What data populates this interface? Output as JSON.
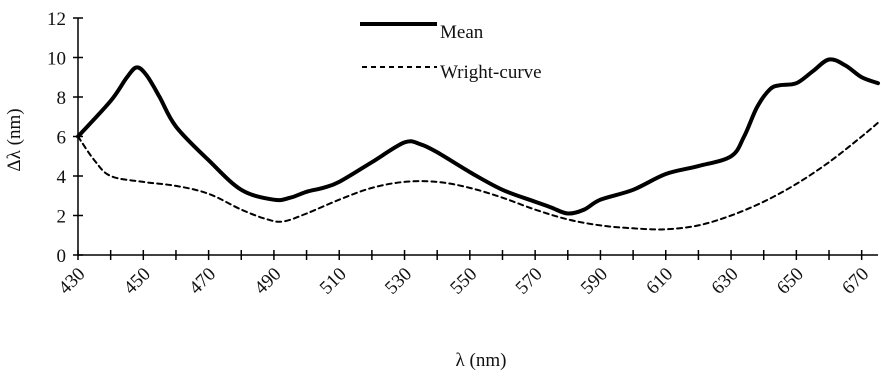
{
  "chart_data": {
    "type": "line",
    "xlabel": "λ (nm)",
    "ylabel": "Δλ (nm)",
    "xlim": [
      430,
      675
    ],
    "ylim": [
      0,
      12
    ],
    "y_ticks": [
      "0",
      "2",
      "4",
      "6",
      "8",
      "10",
      "12"
    ],
    "x_ticks": [
      "430",
      "450",
      "470",
      "490",
      "510",
      "530",
      "550",
      "570",
      "590",
      "610",
      "630",
      "650",
      "670"
    ],
    "legend_position": "top-center",
    "grid": false,
    "series": [
      {
        "name": "Mean",
        "style": "solid",
        "color": "#000000",
        "points": [
          [
            430,
            6.0
          ],
          [
            440,
            7.8
          ],
          [
            445,
            9.0
          ],
          [
            448,
            9.5
          ],
          [
            451,
            9.1
          ],
          [
            455,
            8.0
          ],
          [
            460,
            6.5
          ],
          [
            470,
            4.8
          ],
          [
            480,
            3.3
          ],
          [
            490,
            2.8
          ],
          [
            495,
            2.9
          ],
          [
            500,
            3.2
          ],
          [
            505,
            3.4
          ],
          [
            510,
            3.7
          ],
          [
            520,
            4.7
          ],
          [
            530,
            5.7
          ],
          [
            535,
            5.6
          ],
          [
            540,
            5.2
          ],
          [
            550,
            4.2
          ],
          [
            560,
            3.3
          ],
          [
            570,
            2.7
          ],
          [
            575,
            2.4
          ],
          [
            580,
            2.1
          ],
          [
            585,
            2.3
          ],
          [
            590,
            2.8
          ],
          [
            600,
            3.3
          ],
          [
            610,
            4.1
          ],
          [
            620,
            4.5
          ],
          [
            630,
            5.0
          ],
          [
            634,
            6.0
          ],
          [
            638,
            7.5
          ],
          [
            642,
            8.4
          ],
          [
            645,
            8.6
          ],
          [
            650,
            8.7
          ],
          [
            655,
            9.3
          ],
          [
            660,
            9.9
          ],
          [
            665,
            9.6
          ],
          [
            670,
            9.0
          ],
          [
            675,
            8.7
          ]
        ]
      },
      {
        "name": "Wright-curve",
        "style": "dashed",
        "color": "#000000",
        "points": [
          [
            430,
            6.0
          ],
          [
            435,
            4.8
          ],
          [
            440,
            4.0
          ],
          [
            450,
            3.7
          ],
          [
            460,
            3.5
          ],
          [
            470,
            3.1
          ],
          [
            480,
            2.3
          ],
          [
            488,
            1.8
          ],
          [
            493,
            1.7
          ],
          [
            500,
            2.1
          ],
          [
            510,
            2.8
          ],
          [
            520,
            3.4
          ],
          [
            530,
            3.7
          ],
          [
            540,
            3.7
          ],
          [
            550,
            3.4
          ],
          [
            560,
            2.9
          ],
          [
            570,
            2.3
          ],
          [
            580,
            1.8
          ],
          [
            590,
            1.5
          ],
          [
            600,
            1.35
          ],
          [
            610,
            1.3
          ],
          [
            620,
            1.5
          ],
          [
            630,
            2.0
          ],
          [
            640,
            2.7
          ],
          [
            650,
            3.6
          ],
          [
            660,
            4.7
          ],
          [
            670,
            6.0
          ],
          [
            675,
            6.7
          ]
        ]
      }
    ]
  }
}
